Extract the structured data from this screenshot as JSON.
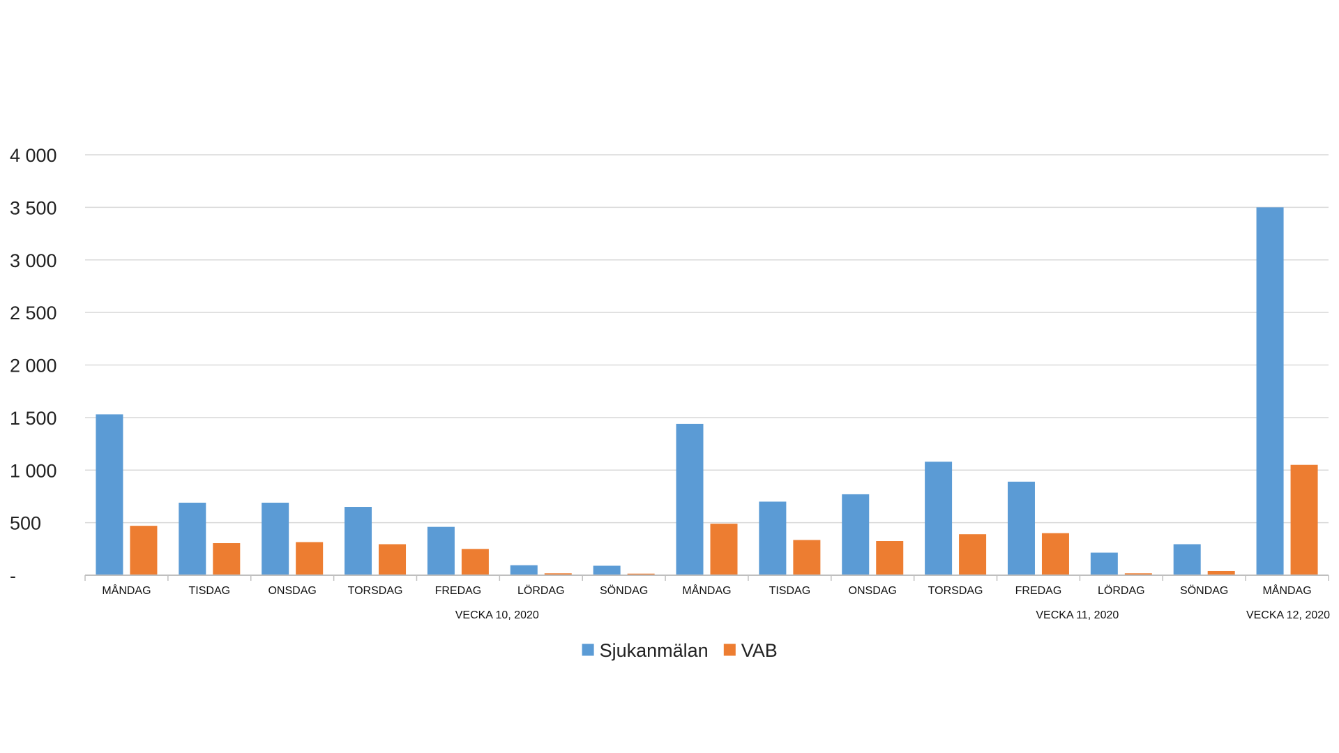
{
  "chart_data": {
    "type": "bar",
    "categories": [
      "MÅNDAG",
      "TISDAG",
      "ONSDAG",
      "TORSDAG",
      "FREDAG",
      "LÖRDAG",
      "SÖNDAG",
      "MÅNDAG",
      "TISDAG",
      "ONSDAG",
      "TORSDAG",
      "FREDAG",
      "LÖRDAG",
      "SÖNDAG",
      "MÅNDAG"
    ],
    "category_groups": [
      {
        "label": "VECKA 10, 2020",
        "start": 0,
        "end": 6
      },
      {
        "label": "VECKA 11, 2020",
        "start": 7,
        "end": 13
      },
      {
        "label": "VECKA 12, 2020",
        "start": 14,
        "end": 14
      }
    ],
    "series": [
      {
        "name": "Sjukanmälan",
        "color": "#5B9BD5",
        "values": [
          1530,
          690,
          690,
          650,
          460,
          95,
          90,
          1440,
          700,
          770,
          1080,
          890,
          215,
          295,
          3500
        ]
      },
      {
        "name": "VAB",
        "color": "#ED7D31",
        "values": [
          470,
          305,
          315,
          295,
          250,
          18,
          15,
          490,
          335,
          325,
          390,
          400,
          18,
          40,
          1050
        ]
      }
    ],
    "ylim": [
      0,
      4000
    ],
    "yticks": [
      0,
      500,
      1000,
      1500,
      2000,
      2500,
      3000,
      3500,
      4000
    ],
    "ytick_labels": [
      "-",
      "500",
      "1 000",
      "1 500",
      "2 000",
      "2 500",
      "3 000",
      "3 500",
      "4 000"
    ],
    "xlabel": "",
    "ylabel": "",
    "title": "",
    "grid": true,
    "legend_position": "bottom-center",
    "gridline_color": "#D9D9D9",
    "axis_color": "#BFBFBF"
  }
}
